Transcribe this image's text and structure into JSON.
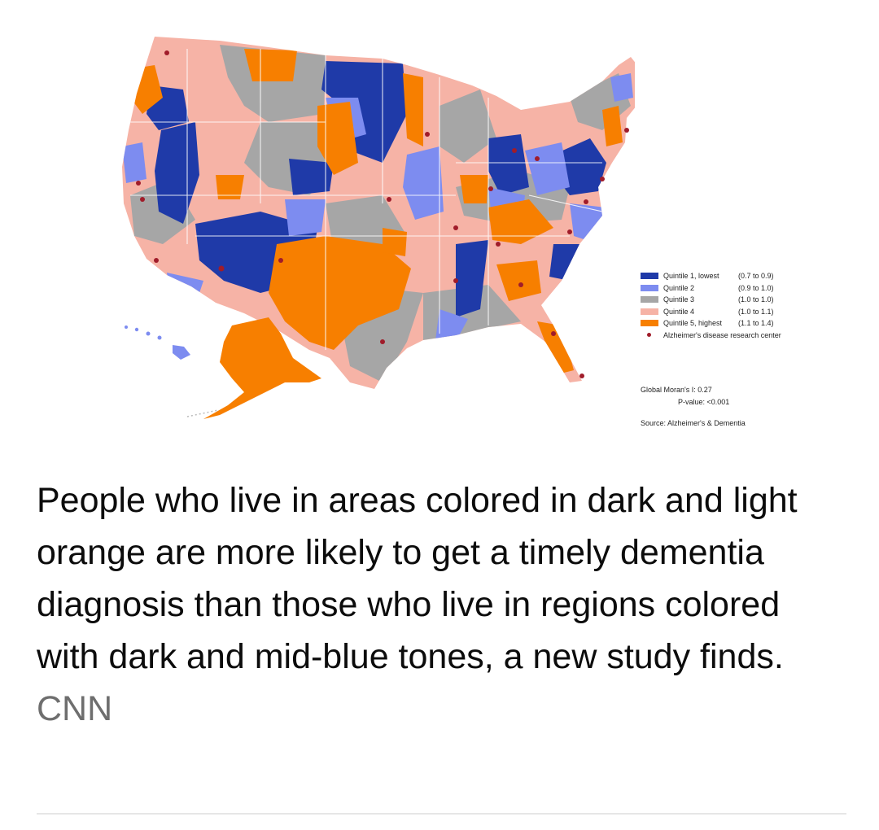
{
  "legend": {
    "items": [
      {
        "label": "Quintile 1, lowest",
        "range": "(0.7 to 0.9)",
        "color": "#1f3aa8"
      },
      {
        "label": "Quintile 2",
        "range": "(0.9 to 1.0)",
        "color": "#7d8cf0"
      },
      {
        "label": "Quintile 3",
        "range": "(1.0 to 1.0)",
        "color": "#a6a6a6"
      },
      {
        "label": "Quintile 4",
        "range": "(1.0 to 1.1)",
        "color": "#f6b3a6"
      },
      {
        "label": "Quintile 5, highest",
        "range": "(1.1 to 1.4)",
        "color": "#f77f00"
      }
    ],
    "center_label": "Alzheimer's disease research center",
    "center_color": "#a01c2a"
  },
  "stats": {
    "morans": "Global Moran's I: 0.27",
    "pvalue": "P-value: <0.001"
  },
  "source": "Source: Alzheimer's & Dementia",
  "caption": {
    "text": "People who live in areas colored in dark and light orange are more likely to get a timely dementia diagnosis than those who live in regions colored with dark and mid-blue tones, a new study finds.",
    "credit": "CNN"
  }
}
